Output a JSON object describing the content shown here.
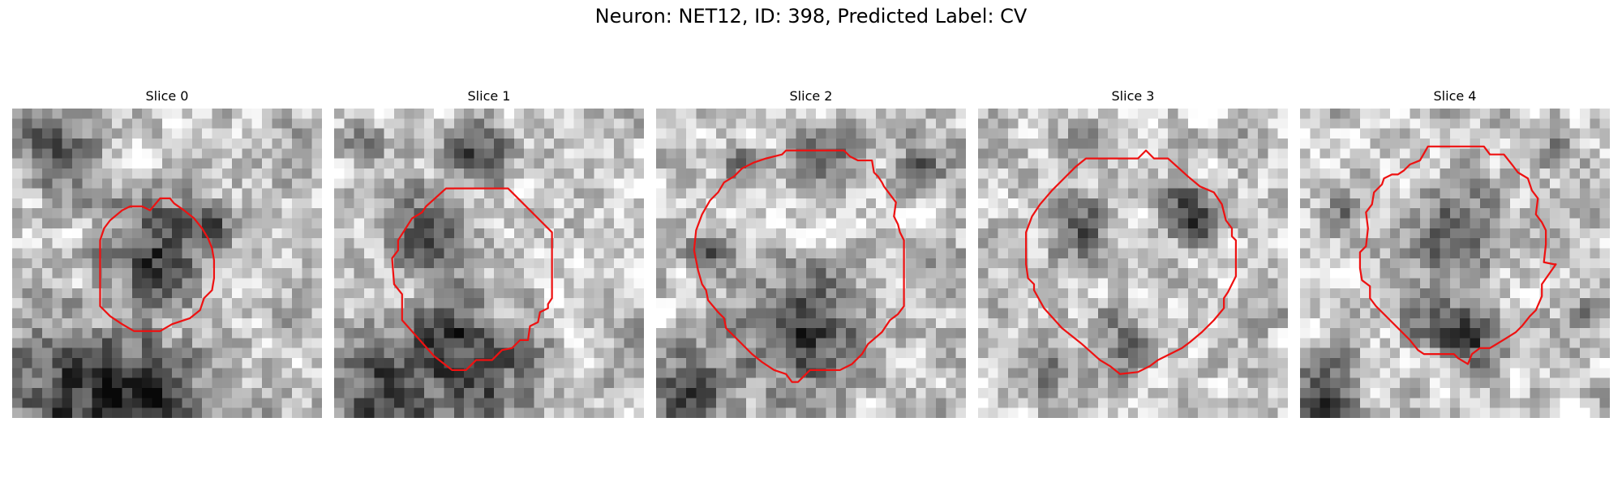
{
  "figure": {
    "title": "Neuron: NET12, ID: 398, Predicted Label: CV",
    "contour_color": "#ee1111",
    "image_colormap": "gray",
    "grid_size": 31
  },
  "panels": [
    {
      "title": "Slice 0",
      "contour_depicts": "small dark cell outline, left-center",
      "contour": [
        [
          13.8,
          10.2
        ],
        [
          14.8,
          9.0
        ],
        [
          15.8,
          9.0
        ],
        [
          16.2,
          9.5
        ],
        [
          17.2,
          10.2
        ],
        [
          18.2,
          11.0
        ],
        [
          19.0,
          12.0
        ],
        [
          19.6,
          13.0
        ],
        [
          20.0,
          14.0
        ],
        [
          20.2,
          15.2
        ],
        [
          20.2,
          17.0
        ],
        [
          20.0,
          18.2
        ],
        [
          19.2,
          19.0
        ],
        [
          18.8,
          20.2
        ],
        [
          17.8,
          21.0
        ],
        [
          16.0,
          21.6
        ],
        [
          14.8,
          22.3
        ],
        [
          12.2,
          22.3
        ],
        [
          11.0,
          21.6
        ],
        [
          9.8,
          20.8
        ],
        [
          8.8,
          19.8
        ],
        [
          8.8,
          13.2
        ],
        [
          9.2,
          12.0
        ],
        [
          9.8,
          11.2
        ],
        [
          11.0,
          10.2
        ],
        [
          11.8,
          9.8
        ],
        [
          13.0,
          9.8
        ]
      ],
      "dark_regions": [
        [
          14,
          14,
          5,
          1.0
        ],
        [
          19,
          11,
          2,
          0.7
        ],
        [
          5,
          28,
          7,
          1.0
        ],
        [
          14,
          28,
          5,
          0.9
        ],
        [
          3,
          3,
          4,
          0.6
        ],
        [
          6,
          6,
          3,
          0.5
        ],
        [
          28,
          4,
          3,
          0.3
        ],
        [
          2,
          18,
          2,
          0.4
        ]
      ]
    },
    {
      "title": "Slice 1",
      "contour_depicts": "cell outline with bright center",
      "contour": [
        [
          11.2,
          8.0
        ],
        [
          17.4,
          8.0
        ],
        [
          21.8,
          12.4
        ],
        [
          21.8,
          19.0
        ],
        [
          21.4,
          19.6
        ],
        [
          21.4,
          20.0
        ],
        [
          20.6,
          20.4
        ],
        [
          20.4,
          21.4
        ],
        [
          19.6,
          21.8
        ],
        [
          19.4,
          23.2
        ],
        [
          18.6,
          23.2
        ],
        [
          17.8,
          24.0
        ],
        [
          16.8,
          24.2
        ],
        [
          15.8,
          25.2
        ],
        [
          14.2,
          25.2
        ],
        [
          13.2,
          26.2
        ],
        [
          11.8,
          26.2
        ],
        [
          10.0,
          24.8
        ],
        [
          6.8,
          21.2
        ],
        [
          6.8,
          18.6
        ],
        [
          6.0,
          17.6
        ],
        [
          5.8,
          15.0
        ],
        [
          6.4,
          14.2
        ],
        [
          6.4,
          13.2
        ],
        [
          7.8,
          11.0
        ],
        [
          8.8,
          10.4
        ],
        [
          9.2,
          9.8
        ]
      ],
      "dark_regions": [
        [
          9,
          12,
          4,
          0.9
        ],
        [
          14,
          4,
          3,
          1.0
        ],
        [
          12,
          22,
          4,
          0.9
        ],
        [
          19,
          24,
          2,
          0.8
        ],
        [
          5,
          28,
          6,
          1.0
        ],
        [
          15,
          28,
          4,
          0.7
        ],
        [
          28,
          25,
          2,
          0.4
        ],
        [
          2,
          3,
          2,
          0.5
        ]
      ]
    },
    {
      "title": "Slice 2",
      "contour_depicts": "large round cell with dark interior bottom",
      "contour": [
        [
          11.0,
          5.0
        ],
        [
          12.6,
          4.6
        ],
        [
          13.0,
          4.2
        ],
        [
          18.8,
          4.2
        ],
        [
          19.4,
          4.8
        ],
        [
          20.2,
          5.2
        ],
        [
          21.6,
          5.2
        ],
        [
          21.8,
          6.4
        ],
        [
          22.2,
          6.8
        ],
        [
          22.6,
          7.4
        ],
        [
          22.8,
          7.8
        ],
        [
          23.4,
          8.6
        ],
        [
          24.0,
          9.4
        ],
        [
          23.8,
          10.8
        ],
        [
          24.2,
          11.6
        ],
        [
          24.4,
          12.4
        ],
        [
          24.8,
          13.2
        ],
        [
          24.8,
          19.8
        ],
        [
          24.2,
          20.6
        ],
        [
          23.4,
          21.2
        ],
        [
          22.6,
          22.4
        ],
        [
          21.2,
          23.6
        ],
        [
          20.6,
          24.6
        ],
        [
          19.6,
          25.6
        ],
        [
          18.4,
          26.2
        ],
        [
          15.4,
          26.2
        ],
        [
          14.6,
          27.0
        ],
        [
          14.2,
          27.4
        ],
        [
          13.6,
          27.4
        ],
        [
          13.0,
          26.6
        ],
        [
          11.8,
          26.2
        ],
        [
          10.6,
          25.4
        ],
        [
          9.6,
          24.6
        ],
        [
          8.2,
          23.2
        ],
        [
          7.0,
          22.0
        ],
        [
          6.8,
          21.0
        ],
        [
          6.2,
          20.4
        ],
        [
          5.2,
          19.2
        ],
        [
          5.0,
          18.2
        ],
        [
          4.6,
          17.6
        ],
        [
          4.2,
          16.2
        ],
        [
          3.8,
          14.2
        ],
        [
          4.0,
          12.2
        ],
        [
          4.6,
          10.6
        ],
        [
          5.4,
          9.2
        ],
        [
          6.2,
          8.4
        ],
        [
          6.8,
          7.4
        ],
        [
          7.8,
          6.8
        ],
        [
          8.6,
          6.0
        ],
        [
          9.8,
          5.4
        ]
      ],
      "dark_regions": [
        [
          14,
          22,
          6,
          1.0
        ],
        [
          17,
          4,
          3,
          0.8
        ],
        [
          5,
          14,
          2,
          0.7
        ],
        [
          27,
          14,
          2,
          0.6
        ],
        [
          3,
          28,
          4,
          0.9
        ],
        [
          26,
          5,
          3,
          0.5
        ],
        [
          8,
          5,
          2,
          0.5
        ]
      ]
    },
    {
      "title": "Slice 3",
      "contour_depicts": "large round cell outline",
      "contour": [
        [
          10.8,
          5.0
        ],
        [
          16.0,
          5.0
        ],
        [
          16.8,
          4.2
        ],
        [
          17.6,
          5.0
        ],
        [
          19.0,
          5.0
        ],
        [
          21.0,
          6.8
        ],
        [
          22.2,
          7.8
        ],
        [
          23.6,
          8.4
        ],
        [
          24.4,
          9.6
        ],
        [
          24.8,
          11.2
        ],
        [
          25.4,
          12.0
        ],
        [
          25.4,
          12.8
        ],
        [
          25.8,
          13.2
        ],
        [
          25.8,
          16.8
        ],
        [
          25.0,
          18.4
        ],
        [
          24.6,
          19.0
        ],
        [
          24.6,
          20.0
        ],
        [
          23.6,
          21.2
        ],
        [
          22.4,
          22.4
        ],
        [
          21.2,
          23.4
        ],
        [
          20.4,
          24.0
        ],
        [
          19.2,
          24.6
        ],
        [
          18.0,
          25.2
        ],
        [
          17.2,
          25.8
        ],
        [
          16.0,
          26.4
        ],
        [
          14.2,
          26.6
        ],
        [
          13.2,
          25.8
        ],
        [
          12.2,
          25.2
        ],
        [
          10.4,
          23.6
        ],
        [
          8.4,
          22.0
        ],
        [
          6.6,
          20.0
        ],
        [
          5.6,
          18.2
        ],
        [
          5.6,
          17.6
        ],
        [
          5.0,
          17.0
        ],
        [
          4.8,
          15.6
        ],
        [
          4.8,
          12.4
        ],
        [
          5.4,
          10.8
        ],
        [
          6.2,
          9.6
        ],
        [
          7.4,
          8.2
        ],
        [
          8.6,
          7.0
        ],
        [
          9.8,
          5.8
        ]
      ],
      "dark_regions": [
        [
          21,
          10,
          3,
          1.0
        ],
        [
          10,
          12,
          3,
          0.7
        ],
        [
          11,
          3,
          2,
          0.8
        ],
        [
          6,
          26,
          3,
          0.6
        ],
        [
          14,
          23,
          3,
          0.6
        ],
        [
          26,
          3,
          2,
          0.4
        ]
      ]
    },
    {
      "title": "Slice 4",
      "contour_depicts": "cell outline with notch on right",
      "contour": [
        [
          12.8,
          3.8
        ],
        [
          18.4,
          3.8
        ],
        [
          19.0,
          4.6
        ],
        [
          20.4,
          4.6
        ],
        [
          21.2,
          5.6
        ],
        [
          21.8,
          6.4
        ],
        [
          22.8,
          7.0
        ],
        [
          23.2,
          8.2
        ],
        [
          23.8,
          9.0
        ],
        [
          23.6,
          10.6
        ],
        [
          24.2,
          11.4
        ],
        [
          24.6,
          12.2
        ],
        [
          24.6,
          13.6
        ],
        [
          24.4,
          15.4
        ],
        [
          25.4,
          15.6
        ],
        [
          25.6,
          15.6
        ],
        [
          24.2,
          17.6
        ],
        [
          24.2,
          18.8
        ],
        [
          23.6,
          20.2
        ],
        [
          23.0,
          20.8
        ],
        [
          22.2,
          21.8
        ],
        [
          21.6,
          22.4
        ],
        [
          20.0,
          23.4
        ],
        [
          19.0,
          24.0
        ],
        [
          18.0,
          24.0
        ],
        [
          17.2,
          24.6
        ],
        [
          16.8,
          25.6
        ],
        [
          15.8,
          25.0
        ],
        [
          15.4,
          24.6
        ],
        [
          12.4,
          24.6
        ],
        [
          11.8,
          24.2
        ],
        [
          11.0,
          23.2
        ],
        [
          10.4,
          22.6
        ],
        [
          9.0,
          21.2
        ],
        [
          7.6,
          19.8
        ],
        [
          7.0,
          19.0
        ],
        [
          7.0,
          17.8
        ],
        [
          6.2,
          17.2
        ],
        [
          6.0,
          16.0
        ],
        [
          6.0,
          14.4
        ],
        [
          6.6,
          13.8
        ],
        [
          6.8,
          12.0
        ],
        [
          6.6,
          10.4
        ],
        [
          7.2,
          9.6
        ],
        [
          7.4,
          8.4
        ],
        [
          8.2,
          7.6
        ],
        [
          8.4,
          7.0
        ],
        [
          9.2,
          6.6
        ],
        [
          9.8,
          6.6
        ],
        [
          10.4,
          6.2
        ],
        [
          11.0,
          5.6
        ],
        [
          12.0,
          5.2
        ]
      ],
      "dark_regions": [
        [
          15,
          12,
          4,
          0.8
        ],
        [
          13,
          20,
          3,
          0.7
        ],
        [
          17,
          23,
          3,
          0.8
        ],
        [
          2,
          28,
          3,
          0.9
        ],
        [
          28,
          20,
          2,
          0.5
        ],
        [
          25,
          3,
          2,
          0.5
        ],
        [
          4,
          10,
          2,
          0.4
        ]
      ]
    }
  ]
}
